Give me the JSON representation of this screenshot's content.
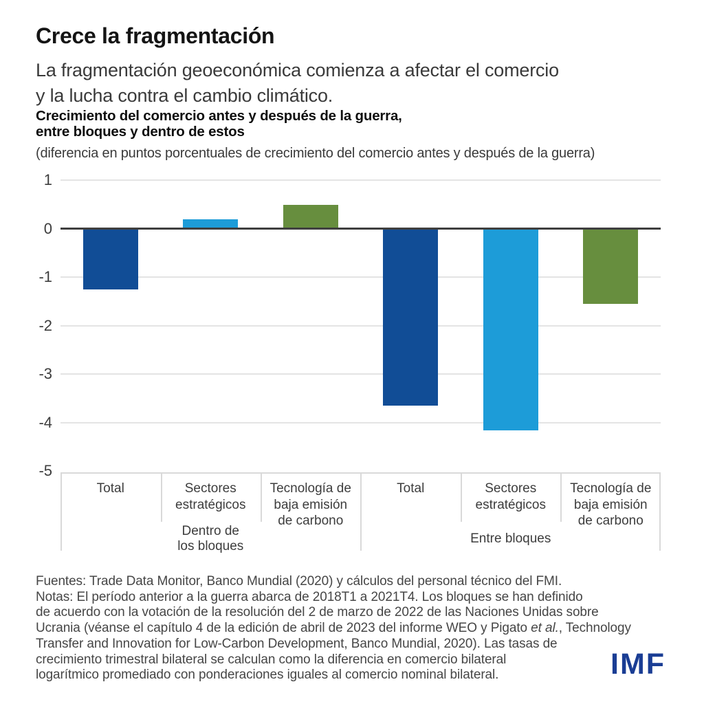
{
  "header": {
    "title": "Crece la fragmentación",
    "subtitle_lines": [
      "La fragmentación geoeconómica comienza a afectar el comercio",
      "y la lucha contra el cambio climático."
    ],
    "chart_title_lines": [
      "Crecimiento del comercio antes y después de la guerra,",
      "entre bloques y dentro de estos"
    ],
    "unit_note": "(diferencia en puntos porcentuales de crecimiento del comercio antes y después de la guerra)"
  },
  "chart_data": {
    "type": "bar",
    "title": "Crecimiento del comercio antes y después de la guerra, entre bloques y dentro de estos",
    "ylabel": "diferencia en puntos porcentuales de crecimiento del comercio antes y después de la guerra",
    "ylim": [
      -5,
      1
    ],
    "yticks": [
      1,
      0,
      -1,
      -2,
      -3,
      -4,
      -5
    ],
    "grid": "horizontal-light-gray",
    "legend_position": "none",
    "groups": [
      {
        "label": "Dentro de los bloques",
        "categories": [
          "Total",
          "Sectores estratégicos",
          "Tecnología de baja emisión de carbono"
        ],
        "values": [
          -1.25,
          0.2,
          0.5
        ]
      },
      {
        "label": "Entre bloques",
        "categories": [
          "Total",
          "Sectores estratégicos",
          "Tecnología de baja emisión de carbono"
        ],
        "values": [
          -3.65,
          -4.15,
          -1.55
        ]
      }
    ],
    "values_flat": [
      -1.25,
      0.2,
      0.5,
      -3.65,
      -4.15,
      -1.55
    ],
    "bar_colors": [
      "#114d96",
      "#1d9cd8",
      "#678e3e"
    ],
    "category_display": [
      "Total",
      "Sectores\nestratégicos",
      "Tecnología de\nbaja emisión\nde carbono",
      "Total",
      "Sectores\nestratégicos",
      "Tecnología de\nbaja emisión\nde carbono"
    ],
    "group_display": [
      "Dentro de\nlos bloques",
      "Entre bloques"
    ]
  },
  "colors": {
    "dark_blue": "#114d96",
    "light_blue": "#1d9cd8",
    "green": "#678e3e",
    "zero_line": "#3f3f3f",
    "gridline": "#e4e4e4",
    "table_border": "#d9d9d9",
    "logo_blue": "#1a3d94"
  },
  "footer": {
    "line1": "Fuentes: Trade Data Monitor, Banco Mundial (2020) y cálculos del personal técnico del FMI.",
    "line2": "Notas: El período anterior a la guerra abarca de 2018T1 a 2021T4. Los bloques se han definido",
    "line3": "de acuerdo con la votación de la resolución del 2 de marzo de 2022 de las Naciones Unidas sobre",
    "line4_pre": "Ucrania (véanse el capítulo 4 de la edición de abril de 2023 del informe WEO y Pigato ",
    "line4_italic": "et al.",
    "line4_post": ", Technology",
    "line5": "Transfer and Innovation for Low-Carbon Development, Banco Mundial, 2020). Las tasas de",
    "line6": "crecimiento trimestral bilateral se calculan como la diferencia en comercio bilateral",
    "line7": "logarítmico promediado con ponderaciones iguales al comercio nominal bilateral.",
    "logo_text": "IMF"
  }
}
